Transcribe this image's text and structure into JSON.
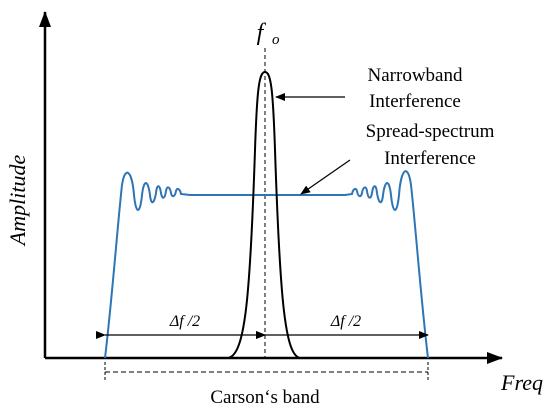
{
  "axes": {
    "y_label": "Amplitude",
    "x_label": "Freq"
  },
  "center_label": {
    "main": "f",
    "sub": "o"
  },
  "narrowband": {
    "lines": [
      "Narrowband",
      "Interference"
    ]
  },
  "spread_spectrum": {
    "lines": [
      "Spread-spectrum",
      "Interference"
    ]
  },
  "half_band_labels": [
    "Δf /2",
    "Δf /2"
  ],
  "band_label": "Carson‘s band"
}
